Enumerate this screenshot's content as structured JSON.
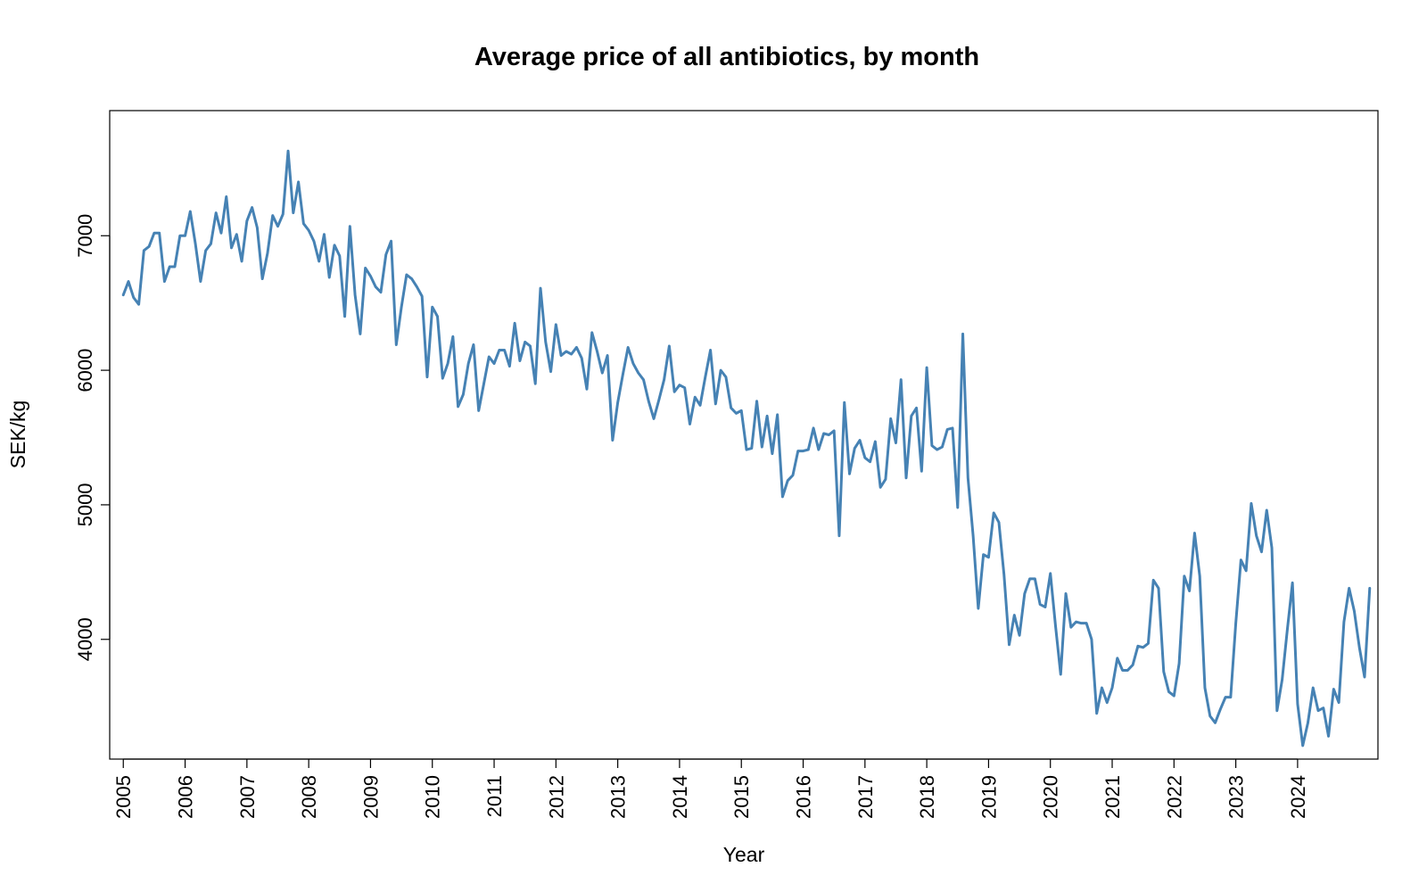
{
  "chart_data": {
    "type": "line",
    "title": "Average price of all antibiotics, by month",
    "xlabel": "Year",
    "ylabel": "SEK/kg",
    "xlim": [
      2004.78,
      2025.3
    ],
    "ylim": [
      3110,
      7930
    ],
    "x_ticks": [
      "2005",
      "2006",
      "2007",
      "2008",
      "2009",
      "2010",
      "2011",
      "2012",
      "2013",
      "2014",
      "2015",
      "2016",
      "2017",
      "2018",
      "2019",
      "2020",
      "2021",
      "2022",
      "2023",
      "2024"
    ],
    "y_ticks": [
      "4000",
      "5000",
      "6000",
      "7000"
    ],
    "grid": false,
    "legend": "none",
    "line_color": "#4682B4",
    "series": [
      {
        "start": "2005-01",
        "frequency": "monthly",
        "values": [
          6560,
          6660,
          6540,
          6490,
          6890,
          6920,
          7020,
          7020,
          6660,
          6770,
          6770,
          7000,
          7000,
          7180,
          6940,
          6660,
          6890,
          6940,
          7170,
          7020,
          7290,
          6910,
          7010,
          6810,
          7110,
          7210,
          7060,
          6680,
          6870,
          7150,
          7070,
          7160,
          7630,
          7170,
          7400,
          7090,
          7040,
          6960,
          6810,
          7010,
          6690,
          6930,
          6850,
          6400,
          7070,
          6560,
          6270,
          6760,
          6700,
          6620,
          6580,
          6860,
          6960,
          6190,
          6470,
          6710,
          6680,
          6620,
          6550,
          5950,
          6470,
          6400,
          5940,
          6050,
          6250,
          5730,
          5820,
          6050,
          6190,
          5700,
          5900,
          6100,
          6050,
          6150,
          6150,
          6030,
          6350,
          6070,
          6210,
          6180,
          5900,
          6610,
          6210,
          5990,
          6340,
          6110,
          6140,
          6120,
          6170,
          6090,
          5860,
          6280,
          6140,
          5980,
          6110,
          5480,
          5760,
          5970,
          6170,
          6050,
          5980,
          5930,
          5770,
          5640,
          5780,
          5930,
          6180,
          5840,
          5890,
          5870,
          5600,
          5800,
          5740,
          5950,
          6150,
          5750,
          6000,
          5950,
          5720,
          5680,
          5700,
          5410,
          5420,
          5770,
          5430,
          5660,
          5380,
          5670,
          5060,
          5180,
          5220,
          5400,
          5400,
          5410,
          5570,
          5410,
          5530,
          5520,
          5550,
          4770,
          5760,
          5230,
          5420,
          5480,
          5350,
          5320,
          5470,
          5130,
          5190,
          5640,
          5460,
          5930,
          5200,
          5660,
          5720,
          5250,
          6020,
          5440,
          5410,
          5430,
          5560,
          5570,
          4980,
          6270,
          5200,
          4770,
          4230,
          4630,
          4610,
          4940,
          4870,
          4480,
          3960,
          4180,
          4030,
          4340,
          4450,
          4450,
          4260,
          4240,
          4490,
          4100,
          3740,
          4340,
          4090,
          4130,
          4120,
          4120,
          4000,
          3450,
          3640,
          3530,
          3640,
          3860,
          3770,
          3770,
          3810,
          3950,
          3940,
          3970,
          4440,
          4380,
          3760,
          3610,
          3580,
          3820,
          4470,
          4360,
          4790,
          4470,
          3640,
          3430,
          3380,
          3480,
          3570,
          3570,
          4120,
          4590,
          4510,
          5010,
          4770,
          4650,
          4960,
          4680,
          3470,
          3700,
          4070,
          4420,
          3520,
          3210,
          3380,
          3640,
          3470,
          3490,
          3280,
          3630,
          3530,
          4130,
          4380,
          4210,
          3940,
          3720,
          4380
        ]
      }
    ]
  }
}
